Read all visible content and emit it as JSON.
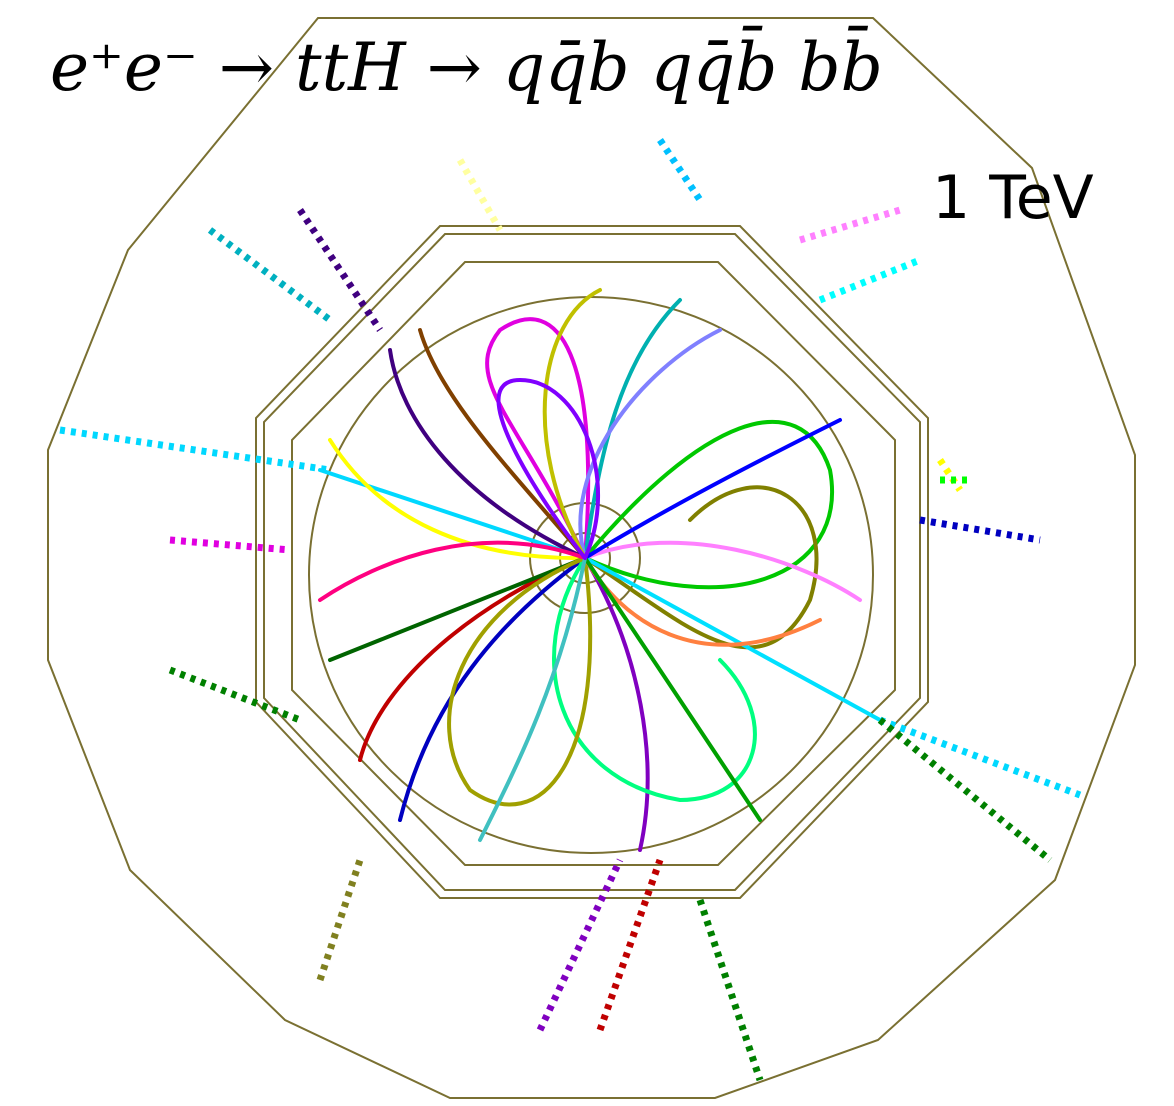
{
  "title": "e⁺e⁻ → ttH → qq̄b qq̄b̄ bb̄",
  "energy_label": "1 TeV"
}
